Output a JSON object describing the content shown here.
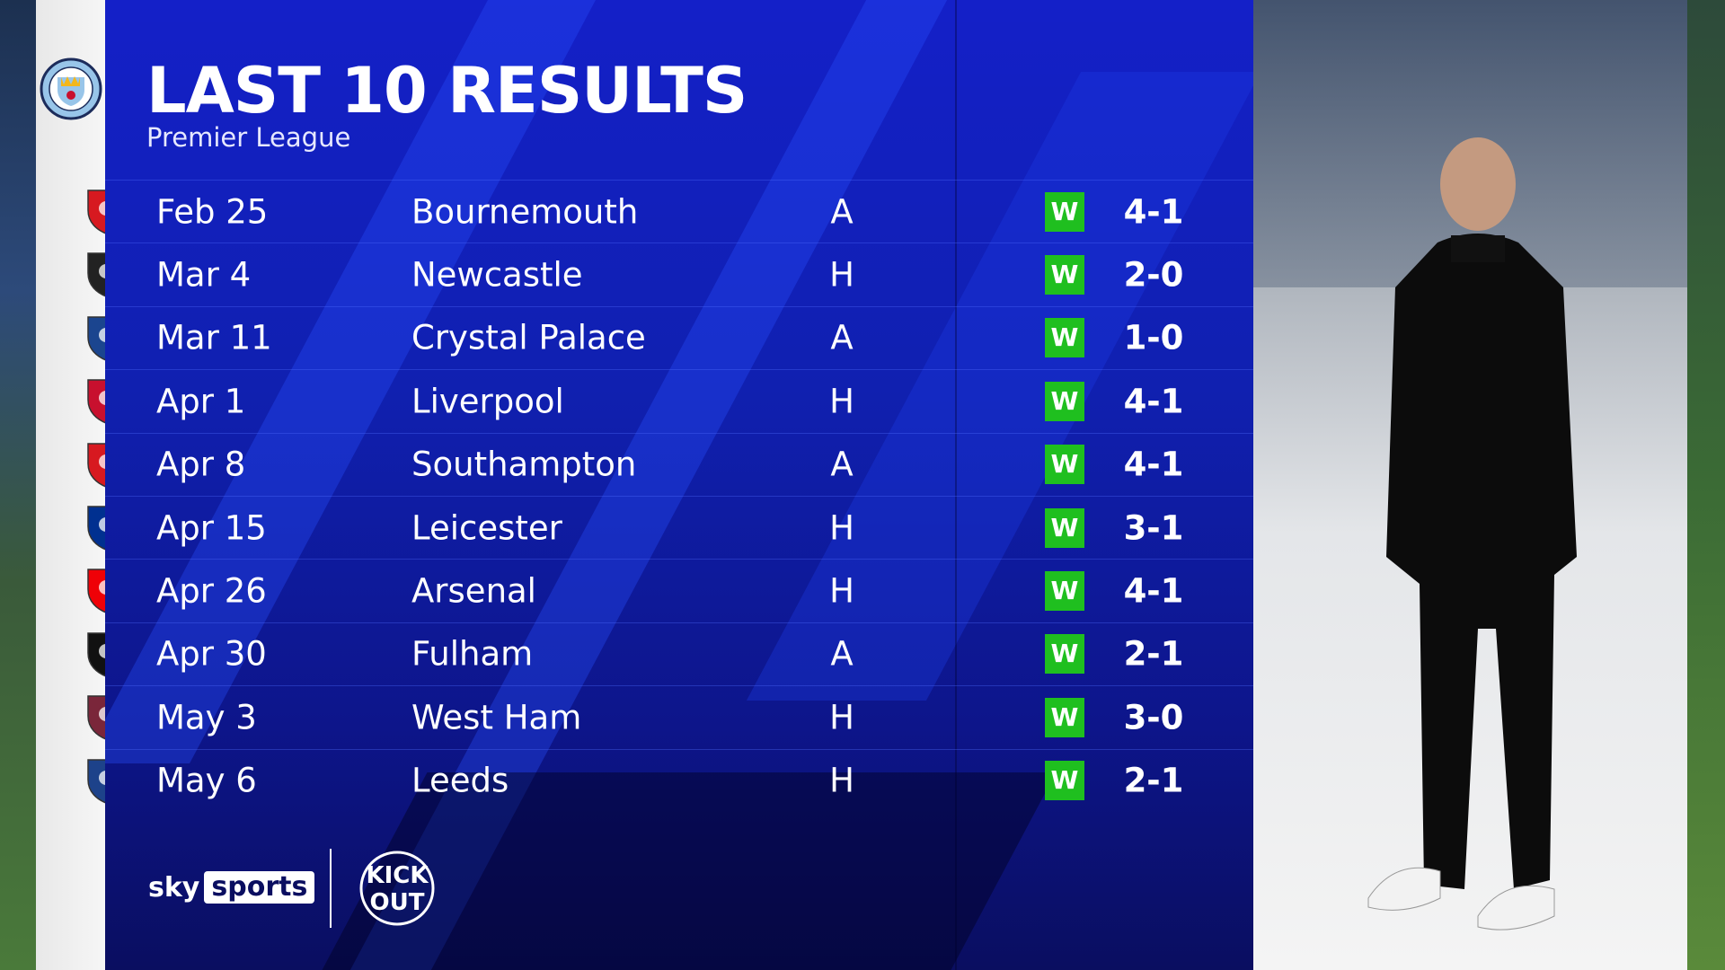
{
  "header": {
    "title": "LAST 10 RESULTS",
    "subtitle": "Premier League",
    "team_crest": "manchester-city-crest"
  },
  "colors": {
    "panel": "#1420c8",
    "win": "#1fbf1f"
  },
  "results": [
    {
      "date": "Feb 25",
      "opponent": "Bournemouth",
      "venue": "A",
      "result": "W",
      "score": "4-1",
      "crest_color": "#d71920"
    },
    {
      "date": "Mar 4",
      "opponent": "Newcastle",
      "venue": "H",
      "result": "W",
      "score": "2-0",
      "crest_color": "#222222"
    },
    {
      "date": "Mar 11",
      "opponent": "Crystal Palace",
      "venue": "A",
      "result": "W",
      "score": "1-0",
      "crest_color": "#1b458f"
    },
    {
      "date": "Apr 1",
      "opponent": "Liverpool",
      "venue": "H",
      "result": "W",
      "score": "4-1",
      "crest_color": "#c8102e"
    },
    {
      "date": "Apr 8",
      "opponent": "Southampton",
      "venue": "A",
      "result": "W",
      "score": "4-1",
      "crest_color": "#d71920"
    },
    {
      "date": "Apr 15",
      "opponent": "Leicester",
      "venue": "H",
      "result": "W",
      "score": "3-1",
      "crest_color": "#003090"
    },
    {
      "date": "Apr 26",
      "opponent": "Arsenal",
      "venue": "H",
      "result": "W",
      "score": "4-1",
      "crest_color": "#ef0107"
    },
    {
      "date": "Apr 30",
      "opponent": "Fulham",
      "venue": "A",
      "result": "W",
      "score": "2-1",
      "crest_color": "#111111"
    },
    {
      "date": "May 3",
      "opponent": "West Ham",
      "venue": "H",
      "result": "W",
      "score": "3-0",
      "crest_color": "#7a263a"
    },
    {
      "date": "May 6",
      "opponent": "Leeds",
      "venue": "H",
      "result": "W",
      "score": "2-1",
      "crest_color": "#1d428a"
    }
  ],
  "footer": {
    "sky": "sky",
    "sports": "sports",
    "partner_logo": "Kick It Out"
  }
}
